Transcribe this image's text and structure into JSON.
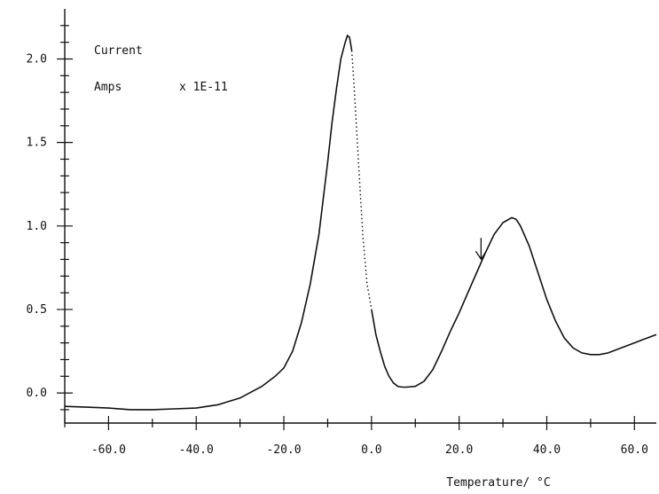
{
  "chart_data": {
    "type": "line",
    "xlabel": "Temperature/ °C",
    "ylabel": "",
    "annotations": [
      "Current",
      "Amps",
      "x 1E-11"
    ],
    "xlim": [
      -70,
      65
    ],
    "ylim": [
      -0.18,
      2.3
    ],
    "x_ticks": [
      -60,
      -40,
      -20,
      0,
      20,
      40,
      60
    ],
    "x_tick_labels": [
      "-60.0",
      "-40.0",
      "-20.0",
      "0.0",
      "20.0",
      "40.0",
      "60.0"
    ],
    "y_ticks": [
      0,
      0.5,
      1.0,
      1.5,
      2.0
    ],
    "y_tick_labels": [
      "0.0",
      "0.5",
      "1.0",
      "1.5",
      "2.0"
    ],
    "grid": false,
    "arrow_marker_x": 25,
    "series": [
      {
        "x": [
          -70,
          -65,
          -60,
          -55,
          -50,
          -45,
          -40,
          -35,
          -30,
          -25,
          -22,
          -20,
          -18,
          -16,
          -14,
          -12,
          -10,
          -9,
          -8,
          -7,
          -6,
          -5.5,
          -5,
          -4.5
        ],
        "y": [
          -0.08,
          -0.085,
          -0.09,
          -0.1,
          -0.1,
          -0.095,
          -0.09,
          -0.07,
          -0.03,
          0.04,
          0.1,
          0.15,
          0.25,
          0.42,
          0.65,
          0.95,
          1.38,
          1.62,
          1.82,
          2.0,
          2.1,
          2.14,
          2.13,
          2.05
        ]
      },
      {
        "x": [
          -4.5,
          -4,
          -3,
          -2,
          -1,
          0
        ],
        "y": [
          2.05,
          1.85,
          1.4,
          0.95,
          0.65,
          0.5
        ],
        "style": "dotted"
      },
      {
        "x": [
          0,
          1,
          2,
          3,
          4,
          5,
          6,
          7,
          8,
          10,
          12,
          14,
          16,
          18,
          20,
          22,
          24,
          26,
          28,
          30,
          32,
          33,
          34,
          36,
          38,
          40,
          42,
          44,
          46,
          48,
          50,
          52,
          54,
          56,
          58,
          60,
          62,
          65
        ],
        "y": [
          0.5,
          0.35,
          0.25,
          0.16,
          0.1,
          0.06,
          0.04,
          0.035,
          0.035,
          0.04,
          0.07,
          0.14,
          0.25,
          0.37,
          0.48,
          0.6,
          0.72,
          0.84,
          0.95,
          1.02,
          1.05,
          1.04,
          1.0,
          0.88,
          0.72,
          0.56,
          0.43,
          0.33,
          0.27,
          0.24,
          0.23,
          0.23,
          0.24,
          0.26,
          0.28,
          0.3,
          0.32,
          0.35
        ]
      }
    ]
  }
}
